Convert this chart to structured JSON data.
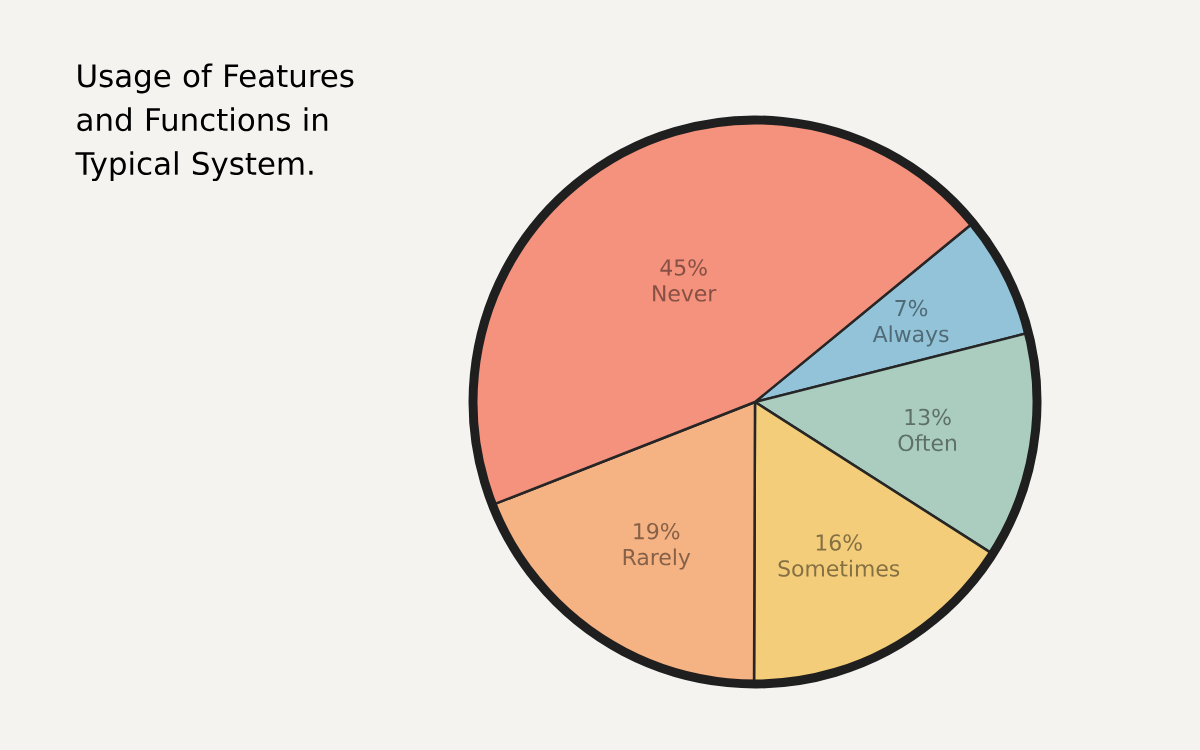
{
  "chart_data": {
    "type": "pie",
    "title": "Usage of Features and Functions in Typical System.",
    "categories": [
      "Always",
      "Often",
      "Sometimes",
      "Rarely",
      "Never"
    ],
    "values": [
      7,
      13,
      16,
      19,
      45
    ],
    "colors": [
      "#93c3d8",
      "#abcdbf",
      "#f3cd7a",
      "#f5b283",
      "#f4927d"
    ],
    "data_labels": true,
    "value_labels": [
      "7%",
      "13%",
      "16%",
      "19%",
      "45%"
    ]
  }
}
